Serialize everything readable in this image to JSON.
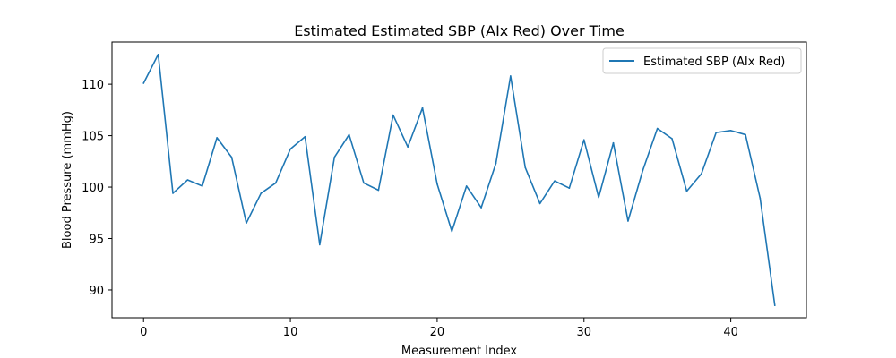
{
  "chart_data": {
    "type": "line",
    "title": "Estimated Estimated SBP (AIx Red) Over Time",
    "xlabel": "Measurement Index",
    "ylabel": "Blood Pressure (mmHg)",
    "xlim": [
      -2.15,
      45.15
    ],
    "ylim": [
      87.3,
      114.1
    ],
    "xticks": [
      0,
      10,
      20,
      30,
      40
    ],
    "yticks": [
      90,
      95,
      100,
      105,
      110
    ],
    "grid": false,
    "legend_position": "top-right",
    "series": [
      {
        "name": "Estimated SBP (AIx Red)",
        "color": "#1f77b4",
        "x": [
          0,
          1,
          2,
          3,
          4,
          5,
          6,
          7,
          8,
          9,
          10,
          11,
          12,
          13,
          14,
          15,
          16,
          17,
          18,
          19,
          20,
          21,
          22,
          23,
          24,
          25,
          26,
          27,
          28,
          29,
          30,
          31,
          32,
          33,
          34,
          35,
          36,
          37,
          38,
          39,
          40,
          41,
          42,
          43
        ],
        "values": [
          110.1,
          112.9,
          99.4,
          100.7,
          100.1,
          104.8,
          102.9,
          96.5,
          99.4,
          100.4,
          103.7,
          104.9,
          94.4,
          102.9,
          105.1,
          100.4,
          99.7,
          107.0,
          103.9,
          107.7,
          100.3,
          95.7,
          100.1,
          98.0,
          102.3,
          110.8,
          101.9,
          98.4,
          100.6,
          99.9,
          104.6,
          99.0,
          104.3,
          96.7,
          101.6,
          105.7,
          104.7,
          99.6,
          101.3,
          105.3,
          105.5,
          105.1,
          98.9,
          88.5
        ]
      }
    ]
  }
}
